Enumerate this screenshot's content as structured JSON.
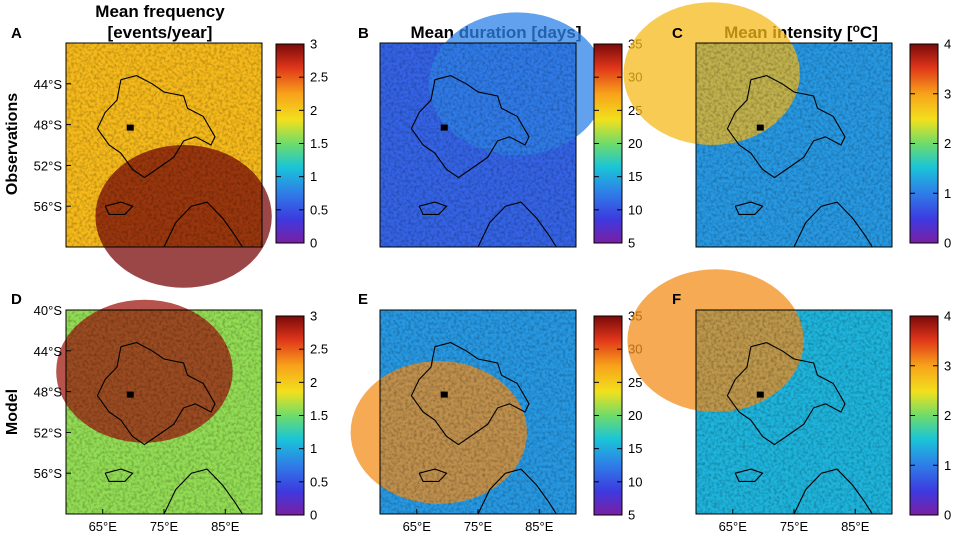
{
  "chart_data": {
    "type": "heatmap",
    "figure_layout": "2x3 map panels with colorbars",
    "column_titles": [
      {
        "line1": "Mean frequency",
        "line2": "[events/year]"
      },
      {
        "line1": "Mean duration [days]",
        "line2": ""
      },
      {
        "line1": "Mean intensity [",
        "sup": "o",
        "line1_end": "C]",
        "line2": ""
      }
    ],
    "row_labels": [
      "Observations",
      "Model"
    ],
    "lon_ticks": [
      "65°E",
      "75°E",
      "85°E"
    ],
    "lon_tick_values": [
      65,
      75,
      85
    ],
    "lon_range": [
      59,
      91
    ],
    "lat_range": [
      -60,
      -40
    ],
    "lat_ticks_top_row": [
      "44°S",
      "48°S",
      "52°S",
      "56°S"
    ],
    "lat_ticks_bottom_row": [
      "40°S",
      "44°S",
      "48°S",
      "52°S",
      "56°S"
    ],
    "lat_tick_values_top": [
      -44,
      -48,
      -52,
      -56
    ],
    "lat_tick_values_bottom": [
      -40,
      -44,
      -48,
      -52,
      -56
    ],
    "colormap": "parula-jet (purple-blue-cyan-yellow-orange-red)",
    "panels": [
      {
        "letter": "A",
        "variable": "Mean frequency",
        "unit": "events/year",
        "source": "Observations",
        "colorbar_range": [
          0,
          3
        ],
        "colorbar_ticks": [
          "3",
          "2.5",
          "2",
          "1.5",
          "1",
          "0.5",
          "0"
        ],
        "typical_value": 2.1
      },
      {
        "letter": "B",
        "variable": "Mean duration",
        "unit": "days",
        "source": "Observations",
        "colorbar_range": [
          5,
          35
        ],
        "colorbar_ticks": [
          "35",
          "30",
          "25",
          "20",
          "15",
          "10",
          "5"
        ],
        "typical_value": 11
      },
      {
        "letter": "C",
        "variable": "Mean intensity",
        "unit": "°C",
        "source": "Observations",
        "colorbar_range": [
          0,
          4
        ],
        "colorbar_ticks": [
          "4",
          "3",
          "2",
          "1",
          "0"
        ],
        "typical_value": 1.2
      },
      {
        "letter": "D",
        "variable": "Mean frequency",
        "unit": "events/year",
        "source": "Model",
        "colorbar_range": [
          0,
          3
        ],
        "colorbar_ticks": [
          "3",
          "2.5",
          "2",
          "1.5",
          "1",
          "0.5",
          "0"
        ],
        "typical_value": 1.6
      },
      {
        "letter": "E",
        "variable": "Mean duration",
        "unit": "days",
        "source": "Model",
        "colorbar_range": [
          5,
          35
        ],
        "colorbar_ticks": [
          "35",
          "30",
          "25",
          "20",
          "15",
          "10",
          "5"
        ],
        "typical_value": 14
      },
      {
        "letter": "F",
        "variable": "Mean intensity",
        "unit": "°C",
        "source": "Model",
        "colorbar_range": [
          0,
          4
        ],
        "colorbar_ticks": [
          "4",
          "3",
          "2",
          "1",
          "0"
        ],
        "typical_value": 1.4
      }
    ]
  }
}
